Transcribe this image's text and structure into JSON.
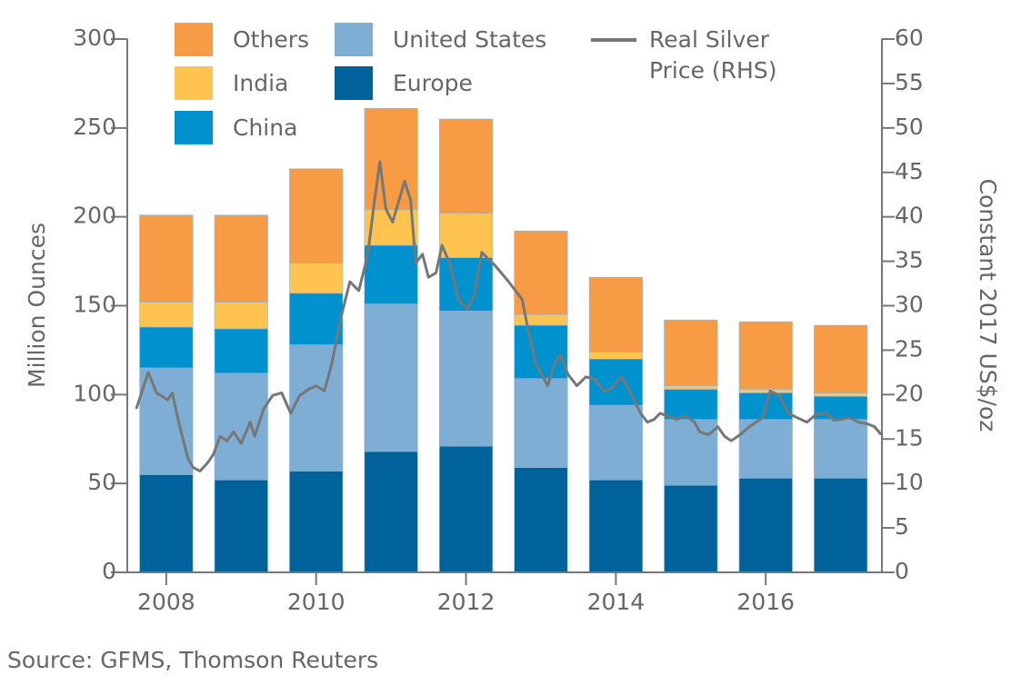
{
  "chart_data": {
    "type": "bar",
    "stacked": true,
    "x": [
      2008,
      2009,
      2010,
      2011,
      2012,
      2013,
      2014,
      2015,
      2016,
      2017
    ],
    "xlim": [
      2007.48,
      2017.55
    ],
    "xticks": [
      2008,
      2010,
      2012,
      2014,
      2016
    ],
    "y_label": "Million Ounces",
    "ylim": [
      0,
      300
    ],
    "yticks": [
      0,
      50,
      100,
      150,
      200,
      250,
      300
    ],
    "y2_label": "Constant 2017 US$/oz",
    "y2lim": [
      0,
      60
    ],
    "y2ticks": [
      0,
      5,
      10,
      15,
      20,
      25,
      30,
      35,
      40,
      45,
      50,
      55,
      60
    ],
    "grid": false,
    "series": [
      {
        "name": "Europe",
        "color": "#00629b",
        "values": [
          55,
          52,
          57,
          68,
          71,
          59,
          52,
          49,
          53,
          53
        ]
      },
      {
        "name": "United States",
        "color": "#7eaed3",
        "values": [
          60,
          60,
          71,
          83,
          76,
          50,
          42,
          37,
          33,
          33
        ]
      },
      {
        "name": "China",
        "color": "#0092cf",
        "values": [
          23,
          25,
          29,
          33,
          30,
          30,
          26,
          17,
          15,
          13
        ]
      },
      {
        "name": "India",
        "color": "#ffc44f",
        "values": [
          14,
          15,
          17,
          20,
          25,
          6,
          4,
          2,
          2,
          2
        ]
      },
      {
        "name": "Others",
        "color": "#f79b45",
        "values": [
          49,
          49,
          53,
          57,
          53,
          47,
          42,
          37,
          38,
          38
        ]
      },
      {
        "name": "Real Silver Price (RHS)",
        "type": "line",
        "axis": "y2",
        "color": "#777777",
        "x": [
          2007.6,
          2007.76,
          2007.87,
          2008.02,
          2008.08,
          2008.18,
          2008.29,
          2008.36,
          2008.45,
          2008.55,
          2008.63,
          2008.72,
          2008.81,
          2008.9,
          2009.0,
          2009.12,
          2009.18,
          2009.3,
          2009.42,
          2009.54,
          2009.66,
          2009.78,
          2009.9,
          2010.0,
          2010.11,
          2010.21,
          2010.33,
          2010.45,
          2010.57,
          2010.69,
          2010.78,
          2010.85,
          2010.93,
          2011.02,
          2011.09,
          2011.18,
          2011.26,
          2011.33,
          2011.42,
          2011.5,
          2011.6,
          2011.68,
          2011.78,
          2011.9,
          2012.02,
          2012.11,
          2012.21,
          2012.39,
          2012.57,
          2012.75,
          2012.81,
          2012.93,
          2013.09,
          2013.18,
          2013.26,
          2013.36,
          2013.48,
          2013.6,
          2013.72,
          2013.84,
          2013.93,
          2014.08,
          2014.21,
          2014.33,
          2014.42,
          2014.51,
          2014.59,
          2014.69,
          2014.81,
          2014.93,
          2015.05,
          2015.12,
          2015.24,
          2015.36,
          2015.45,
          2015.54,
          2015.66,
          2015.78,
          2015.96,
          2016.06,
          2016.18,
          2016.3,
          2016.42,
          2016.55,
          2016.69,
          2016.81,
          2016.91,
          2017.0,
          2017.12,
          2017.24,
          2017.36,
          2017.45,
          2017.54
        ],
        "values": [
          18.4,
          22.5,
          20.2,
          19.4,
          20.2,
          16.4,
          12.8,
          11.8,
          11.4,
          12.3,
          13.3,
          15.3,
          14.8,
          15.8,
          14.5,
          16.9,
          15.3,
          18.4,
          19.9,
          20.2,
          17.9,
          19.9,
          20.6,
          21.0,
          20.4,
          23.5,
          28.6,
          32.7,
          31.7,
          35.8,
          41.9,
          46.2,
          40.9,
          39.4,
          41.4,
          44.0,
          41.9,
          34.8,
          35.8,
          33.2,
          33.7,
          36.8,
          34.8,
          30.7,
          29.6,
          31.2,
          36.0,
          34.5,
          32.7,
          30.7,
          28.1,
          23.5,
          21.0,
          23.5,
          24.5,
          22.3,
          21.0,
          22.0,
          21.7,
          20.4,
          20.6,
          22.0,
          19.9,
          17.9,
          16.9,
          17.2,
          17.9,
          17.6,
          17.2,
          17.6,
          16.9,
          15.8,
          15.5,
          16.4,
          15.3,
          14.8,
          15.5,
          16.4,
          17.4,
          20.4,
          19.9,
          17.9,
          17.4,
          16.9,
          17.9,
          17.9,
          17.1,
          17.2,
          17.4,
          16.9,
          16.7,
          16.4,
          15.5
        ]
      }
    ],
    "source": "Source: GFMS, Thomson Reuters"
  }
}
